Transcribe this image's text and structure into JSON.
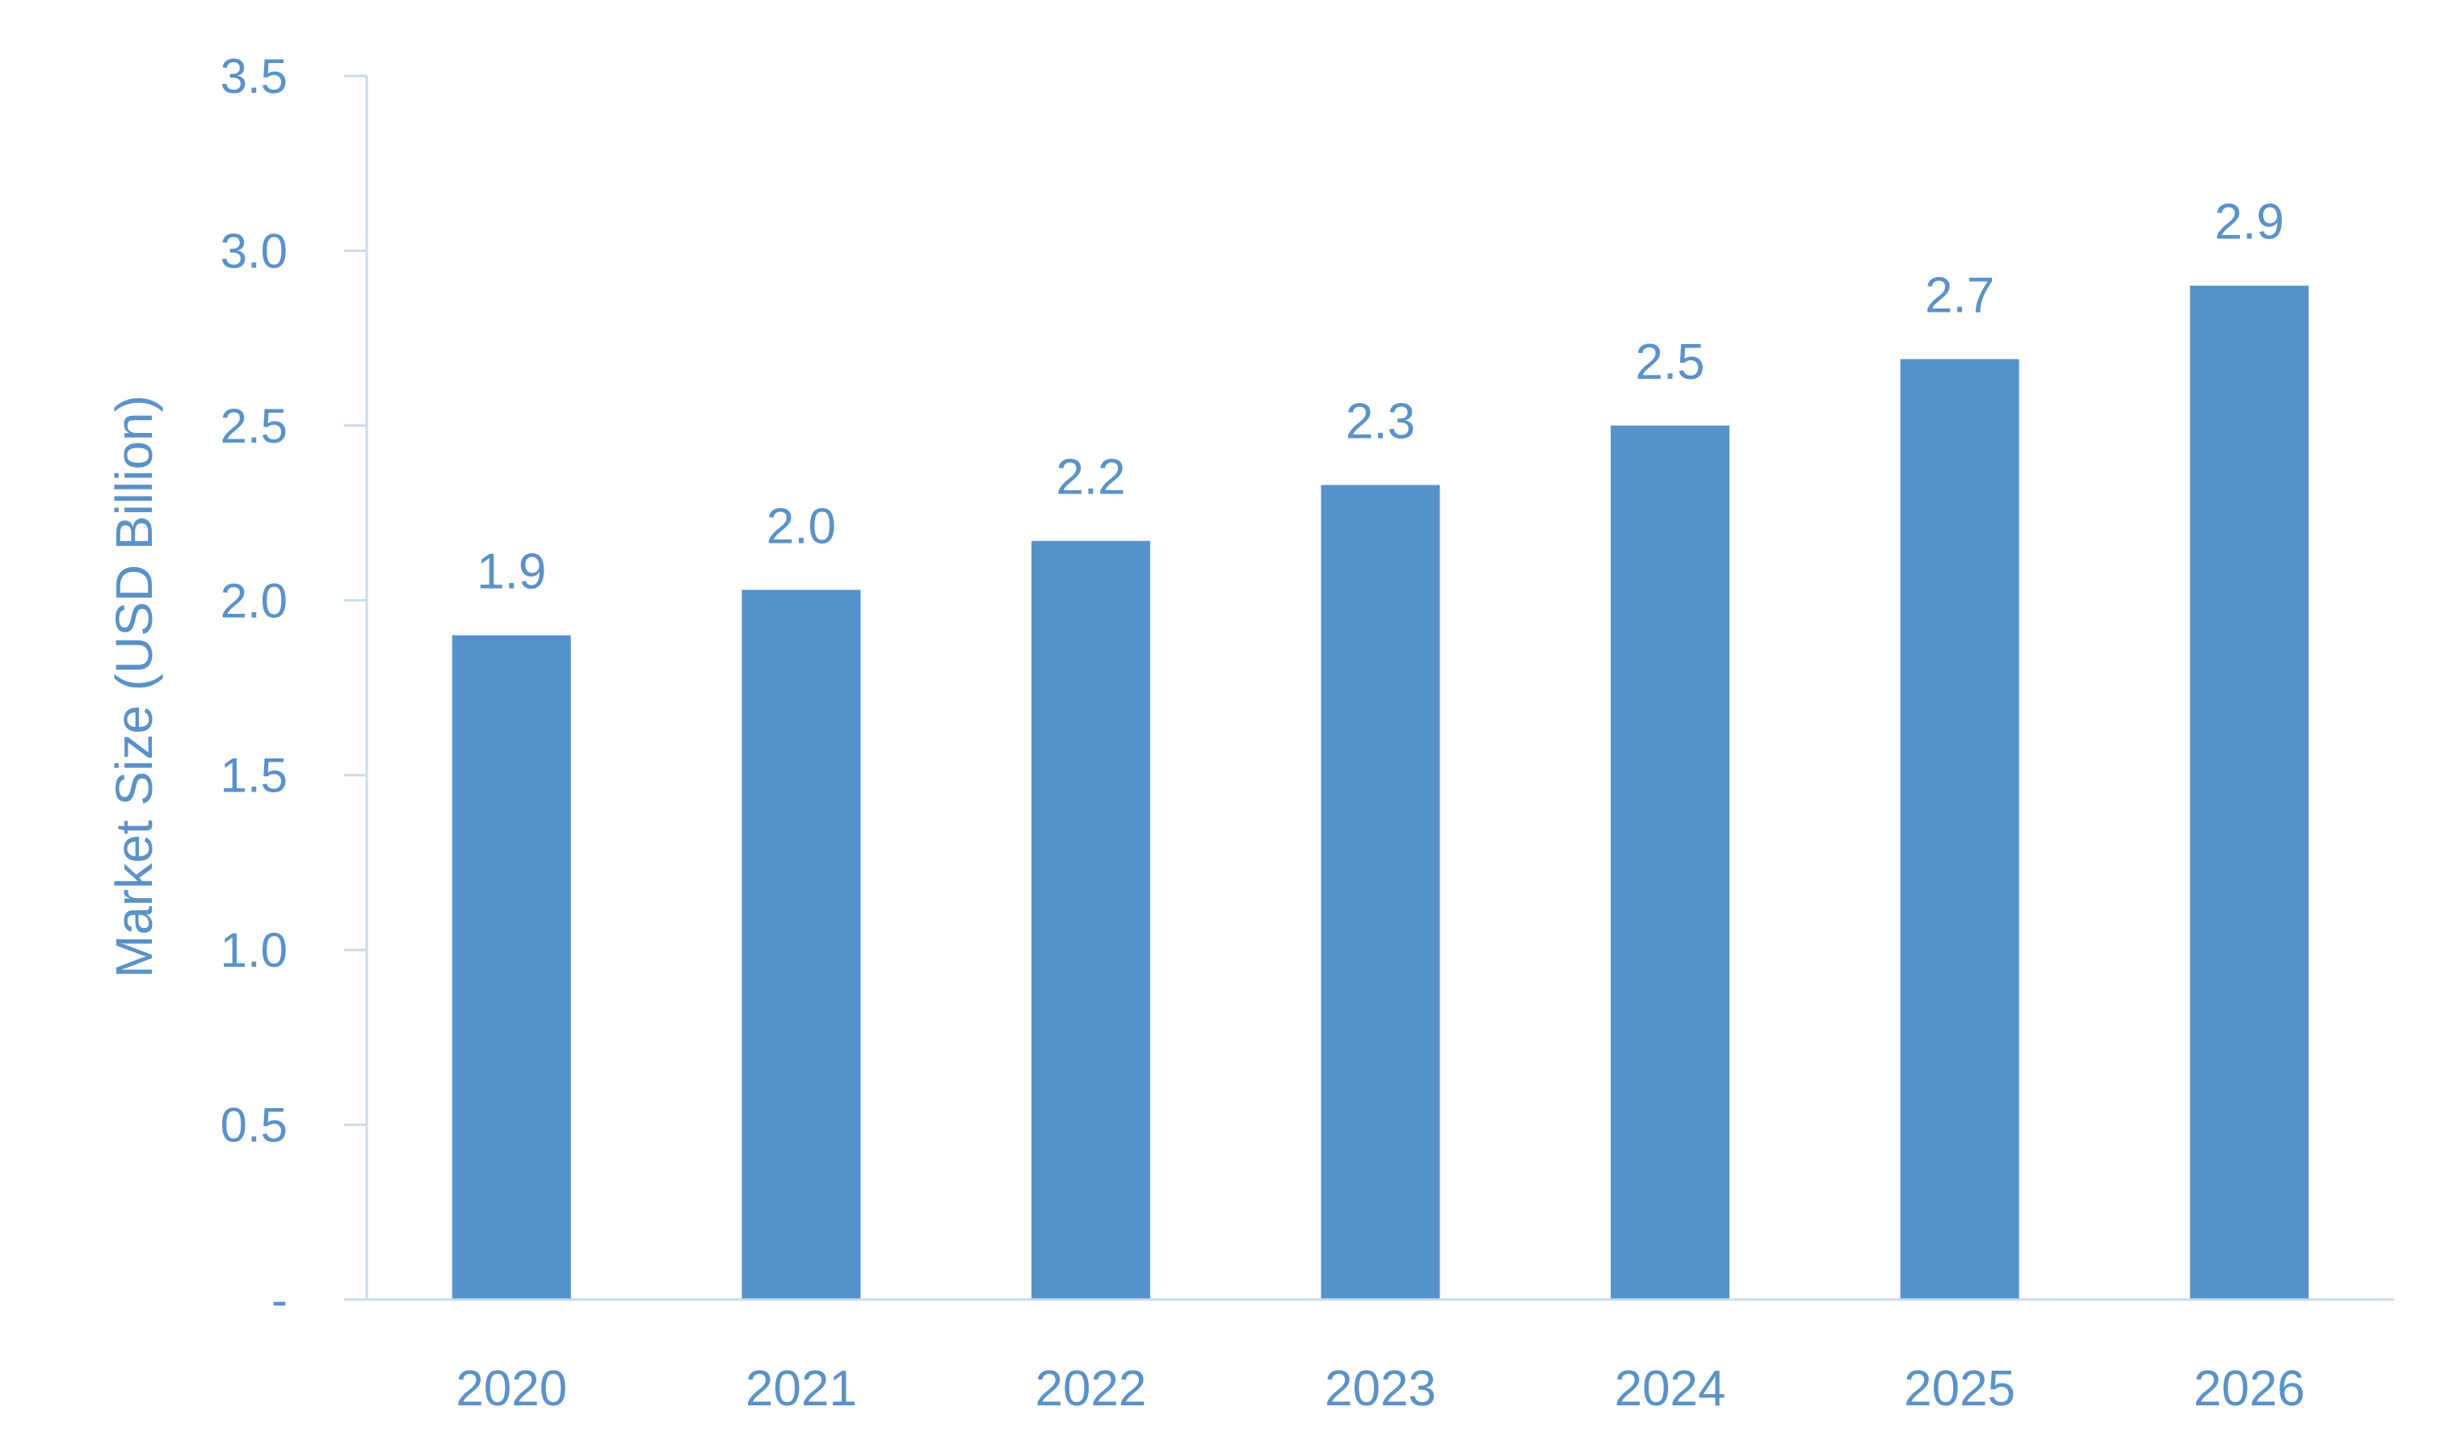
{
  "chart_data": {
    "type": "bar",
    "title": "",
    "xlabel": "",
    "ylabel": "Market Size (USD Billion)",
    "categories": [
      "2020",
      "2021",
      "2022",
      "2023",
      "2024",
      "2025",
      "2026"
    ],
    "values": [
      1.9,
      2.03,
      2.17,
      2.33,
      2.5,
      2.69,
      2.9
    ],
    "data_labels": [
      "1.9",
      "2.0",
      "2.2",
      "2.3",
      "2.5",
      "2.7",
      "2.9"
    ],
    "ylim": [
      0,
      3.5
    ],
    "yticks": [
      0,
      0.5,
      1.0,
      1.5,
      2.0,
      2.5,
      3.0,
      3.5
    ],
    "ytick_labels": [
      "-",
      "0.5",
      "1.0",
      "1.5",
      "2.0",
      "2.5",
      "3.0",
      "3.5"
    ],
    "grid": false,
    "legend": "none",
    "colors": {
      "bar": "#5592ca",
      "text": "#5a92c8",
      "axis": "#c9dbee"
    }
  }
}
